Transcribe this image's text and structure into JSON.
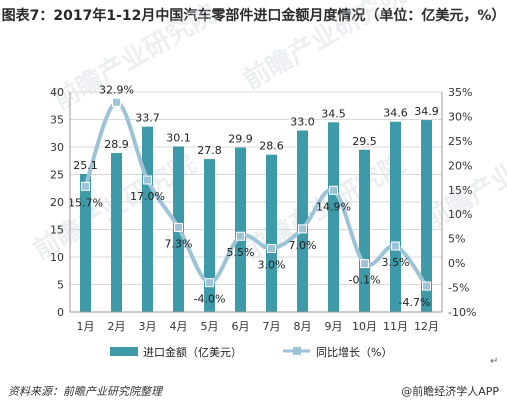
{
  "title": "图表7：2017年1-12月中国汽车零部件进口金额月度情况（单位：亿美元，%）",
  "source": "资料来源：前瞻产业研究院整理",
  "brand": "@前瞻经济学人APP",
  "return_mark": "↵",
  "watermark": "前瞻产业研究院",
  "colors": {
    "bar": "#3e9aa8",
    "line": "#9dc3d6",
    "marker": "#9dc3d6",
    "grid": "#d9d9d9",
    "axis_text": "#333333"
  },
  "chart_data": {
    "type": "bar",
    "categories": [
      "1月",
      "2月",
      "3月",
      "4月",
      "5月",
      "6月",
      "7月",
      "8月",
      "9月",
      "10月",
      "11月",
      "12月"
    ],
    "series": [
      {
        "name": "进口金额（亿美元）",
        "type": "bar",
        "axis": "left",
        "values": [
          25.1,
          28.9,
          33.7,
          30.1,
          27.8,
          29.9,
          28.6,
          33.0,
          34.5,
          29.5,
          34.6,
          34.9
        ],
        "labels": [
          "25.1",
          "28.9",
          "33.7",
          "30.1",
          "27.8",
          "29.9",
          "28.6",
          "33.0",
          "34.5",
          "29.5",
          "34.6",
          "34.9"
        ]
      },
      {
        "name": "同比增长（%）",
        "type": "line",
        "axis": "right",
        "values": [
          15.7,
          32.9,
          17.0,
          7.3,
          -4.0,
          5.5,
          3.0,
          7.0,
          14.9,
          -0.1,
          3.5,
          -4.7
        ],
        "labels": [
          "15.7%",
          "32.9%",
          "17.0%",
          "7.3%",
          "-4.0%",
          "5.5%",
          "3.0%",
          "7.0%",
          "14.9%",
          "-0.1%",
          "3.5%",
          "-4.7%"
        ]
      }
    ],
    "y_left": {
      "min": 0,
      "max": 40,
      "ticks": [
        "0",
        "5",
        "10",
        "15",
        "20",
        "25",
        "30",
        "35",
        "40"
      ]
    },
    "y_right": {
      "min": -10,
      "max": 35,
      "ticks": [
        "-10%",
        "-5%",
        "0%",
        "5%",
        "10%",
        "15%",
        "20%",
        "25%",
        "30%",
        "35%"
      ]
    },
    "grid": true,
    "legend_position": "bottom"
  }
}
